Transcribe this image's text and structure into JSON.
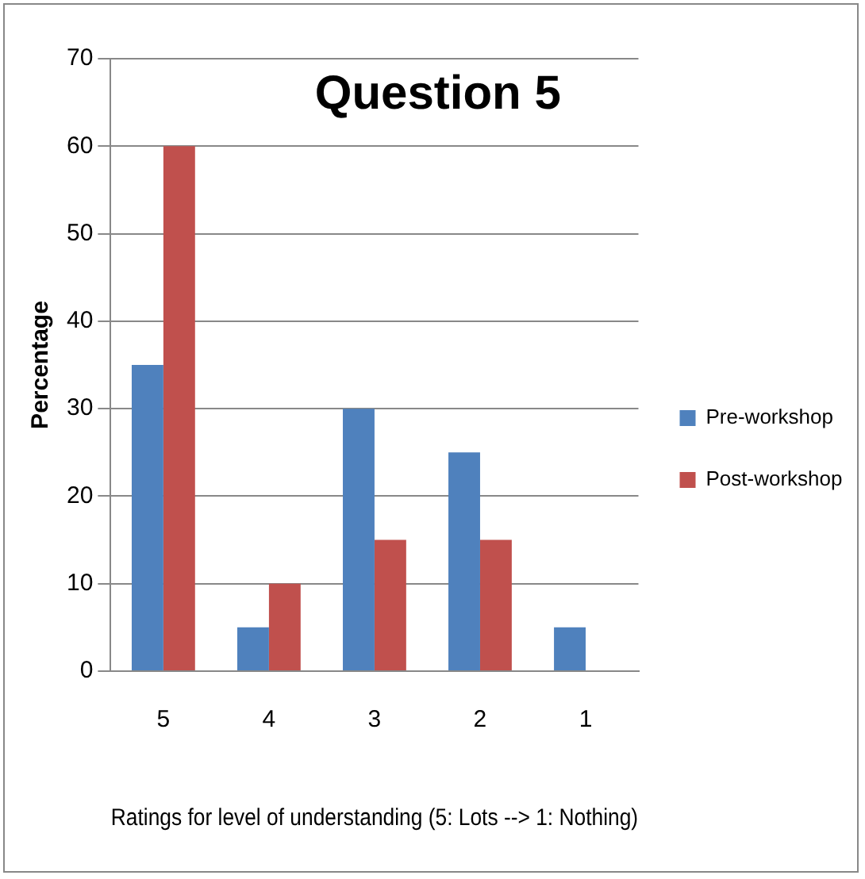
{
  "chart_data": {
    "type": "bar",
    "title": "Question 5",
    "xlabel": "Ratings for level of understanding (5: Lots --> 1: Nothing)",
    "ylabel": "Percentage",
    "categories": [
      "5",
      "4",
      "3",
      "2",
      "1"
    ],
    "series": [
      {
        "name": "Pre-workshop",
        "color": "#4f81bd",
        "values": [
          35,
          5,
          30,
          25,
          5
        ]
      },
      {
        "name": "Post-workshop",
        "color": "#c0504d",
        "values": [
          60,
          10,
          15,
          15,
          0
        ]
      }
    ],
    "ylim": [
      0,
      70
    ],
    "yticks": [
      0,
      10,
      20,
      30,
      40,
      50,
      60,
      70
    ],
    "grid": "y",
    "legend": "right"
  }
}
